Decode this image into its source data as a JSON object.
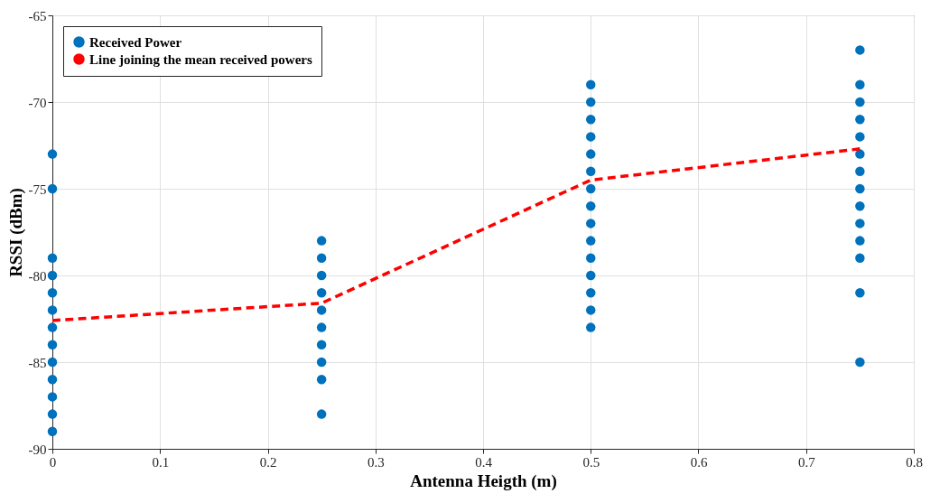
{
  "chart_data": {
    "type": "scatter",
    "xlabel": "Antenna Heigth  (m)",
    "ylabel": "RSSI (dBm)",
    "xlim": [
      0,
      0.8
    ],
    "xticks": [
      0,
      0.1,
      0.2,
      0.3,
      0.4,
      0.5,
      0.6,
      0.7,
      0.8
    ],
    "ylim": [
      -90,
      -65
    ],
    "yticks": [
      -90,
      -85,
      -80,
      -75,
      -70,
      -65
    ],
    "grid": true,
    "legend": "top left",
    "marker": "circle",
    "series": [
      {
        "name": "Received Power",
        "color": "#0072bd",
        "x": [
          0,
          0,
          0,
          0,
          0,
          0,
          0,
          0,
          0,
          0,
          0,
          0,
          0,
          0.25,
          0.25,
          0.25,
          0.25,
          0.25,
          0.25,
          0.25,
          0.25,
          0.25,
          0.25,
          0.5,
          0.5,
          0.5,
          0.5,
          0.5,
          0.5,
          0.5,
          0.5,
          0.5,
          0.5,
          0.5,
          0.5,
          0.5,
          0.5,
          0.5,
          0.75,
          0.75,
          0.75,
          0.75,
          0.75,
          0.75,
          0.75,
          0.75,
          0.75,
          0.75,
          0.75,
          0.75,
          0.75,
          0.75
        ],
        "values": [
          -73,
          -75,
          -79,
          -80,
          -81,
          -82,
          -83,
          -84,
          -85,
          -86,
          -87,
          -88,
          -89,
          -78,
          -79,
          -80,
          -81,
          -82,
          -83,
          -84,
          -85,
          -86,
          -88,
          -69,
          -70,
          -71,
          -72,
          -73,
          -74,
          -75,
          -76,
          -77,
          -78,
          -79,
          -80,
          -81,
          -82,
          -83,
          -67,
          -69,
          -70,
          -71,
          -72,
          -73,
          -74,
          -75,
          -76,
          -77,
          -78,
          -79,
          -81,
          -85
        ]
      },
      {
        "name": "Line joining the mean received powers",
        "type": "line",
        "color": "#ff0000",
        "line_style": "dashed",
        "marker": "none",
        "x": [
          0,
          0.25,
          0.5,
          0.75
        ],
        "values": [
          -82.6,
          -81.6,
          -74.5,
          -72.7
        ]
      }
    ]
  }
}
